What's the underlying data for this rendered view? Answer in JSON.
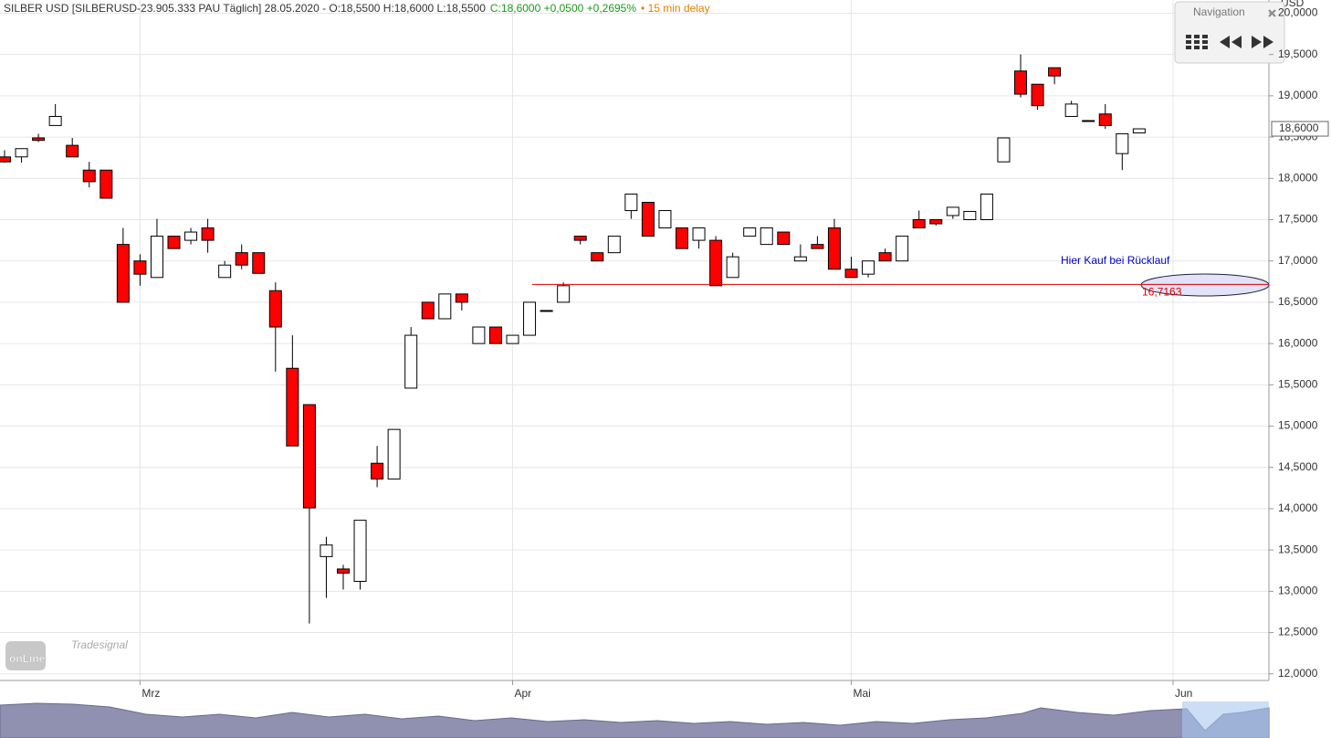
{
  "chart_data": {
    "type": "candlestick",
    "header": {
      "info": "SILBER USD [SILBERUSD-23.905.333 PAU Täglich] 28.05.2020 - O:18,5500 H:18,6000 L:18,5500",
      "change": "C:18,6000 +0,0500 +0,2695%",
      "delay": "• 15 min delay"
    },
    "y_axis_label": "USD",
    "up_color": "#ffffff",
    "down_color": "#ff0000",
    "categories": [
      null,
      null,
      null,
      null,
      null,
      null,
      null,
      null,
      "Mrz",
      null,
      null,
      null,
      null,
      null,
      null,
      null,
      null,
      null,
      null,
      null,
      null,
      null,
      null,
      null,
      null,
      null,
      null,
      null,
      null,
      null,
      "Apr",
      null,
      null,
      null,
      null,
      null,
      null,
      null,
      null,
      null,
      null,
      null,
      null,
      null,
      null,
      null,
      null,
      null,
      null,
      null,
      "Mai",
      null,
      null,
      null,
      null,
      null,
      null,
      null,
      null,
      null,
      null,
      null,
      null,
      null,
      null,
      null,
      null,
      null,
      null,
      "Jun",
      null,
      null,
      null,
      null,
      null
    ],
    "open": [
      18.26,
      18.26,
      18.49,
      18.64,
      18.4,
      18.1,
      18.1,
      17.2,
      17.0,
      16.8,
      17.3,
      17.25,
      17.4,
      16.8,
      17.1,
      17.1,
      16.64,
      15.7,
      15.26,
      13.42,
      13.27,
      13.12,
      14.55,
      14.36,
      15.46,
      16.5,
      16.3,
      16.6,
      16.0,
      16.2,
      16.0,
      16.1,
      16.4,
      16.5,
      17.3,
      17.1,
      17.1,
      17.61,
      17.71,
      17.4,
      17.4,
      17.25,
      17.25,
      16.8,
      17.3,
      17.2,
      17.35,
      17.0,
      17.2,
      17.4,
      16.9,
      16.84,
      17.1,
      17.0,
      17.5,
      17.5,
      17.55,
      17.5,
      17.5,
      18.2,
      19.3,
      19.14,
      19.34,
      18.75,
      18.7,
      18.78,
      18.3,
      18.55,
      null,
      null,
      null,
      null,
      null,
      null,
      null
    ],
    "high": [
      18.34,
      18.36,
      18.54,
      18.9,
      18.49,
      18.2,
      18.1,
      17.4,
      17.08,
      17.51,
      17.3,
      17.4,
      17.51,
      17.0,
      17.2,
      17.1,
      16.74,
      16.1,
      15.26,
      13.66,
      13.32,
      13.86,
      14.76,
      14.96,
      16.2,
      16.5,
      16.6,
      16.6,
      16.2,
      16.2,
      16.1,
      16.5,
      16.4,
      16.74,
      17.3,
      17.1,
      17.3,
      17.81,
      17.71,
      17.61,
      17.4,
      17.4,
      17.3,
      17.1,
      17.4,
      17.4,
      17.35,
      17.2,
      17.3,
      17.51,
      17.05,
      17.0,
      17.15,
      17.3,
      17.61,
      17.5,
      17.65,
      17.6,
      17.81,
      18.49,
      19.5,
      19.14,
      19.34,
      18.94,
      18.7,
      18.9,
      18.54,
      18.6,
      null,
      null,
      null,
      null,
      null,
      null,
      null
    ],
    "low": [
      18.19,
      18.19,
      18.44,
      18.64,
      18.26,
      17.89,
      17.76,
      16.5,
      16.7,
      16.8,
      17.15,
      17.2,
      17.1,
      16.8,
      16.9,
      16.85,
      15.66,
      14.76,
      12.61,
      12.92,
      13.02,
      13.02,
      14.26,
      14.36,
      15.46,
      16.3,
      16.3,
      16.4,
      16.0,
      16.0,
      16.0,
      16.1,
      16.4,
      16.5,
      17.2,
      17.0,
      17.1,
      17.51,
      17.3,
      17.4,
      17.15,
      17.15,
      16.7,
      16.8,
      17.3,
      17.2,
      17.2,
      17.0,
      17.15,
      16.9,
      16.8,
      16.8,
      17.0,
      17.0,
      17.4,
      17.43,
      17.51,
      17.5,
      17.5,
      18.2,
      18.98,
      18.83,
      19.14,
      18.75,
      18.7,
      18.6,
      18.1,
      18.55,
      null,
      null,
      null,
      null,
      null,
      null,
      null
    ],
    "close": [
      18.2,
      18.36,
      18.46,
      18.75,
      18.26,
      17.96,
      17.76,
      16.5,
      16.84,
      17.3,
      17.15,
      17.35,
      17.25,
      16.95,
      16.95,
      16.85,
      16.2,
      14.76,
      14.01,
      13.56,
      13.22,
      13.86,
      14.36,
      14.96,
      16.1,
      16.3,
      16.6,
      16.5,
      16.2,
      16.0,
      16.1,
      16.5,
      16.4,
      16.7,
      17.25,
      17.0,
      17.3,
      17.81,
      17.3,
      17.61,
      17.15,
      17.4,
      16.7,
      17.05,
      17.4,
      17.4,
      17.2,
      17.05,
      17.15,
      16.9,
      16.8,
      17.0,
      17.0,
      17.3,
      17.4,
      17.45,
      17.65,
      17.6,
      17.81,
      18.49,
      19.02,
      18.88,
      19.24,
      18.9,
      18.7,
      18.64,
      18.54,
      18.6,
      null,
      null,
      null,
      null,
      null,
      null,
      null
    ],
    "ylim": [
      11.92,
      20.16
    ],
    "yticks": [
      {
        "value": 12,
        "label": "12,0000"
      },
      {
        "value": 12.5,
        "label": "12,5000"
      },
      {
        "value": 13,
        "label": "13,0000"
      },
      {
        "value": 13.5,
        "label": "13,5000"
      },
      {
        "value": 14,
        "label": "14,0000"
      },
      {
        "value": 14.5,
        "label": "14,5000"
      },
      {
        "value": 15,
        "label": "15,0000"
      },
      {
        "value": 15.5,
        "label": "15,5000"
      },
      {
        "value": 16,
        "label": "16,0000"
      },
      {
        "value": 16.5,
        "label": "16,5000"
      },
      {
        "value": 17,
        "label": "17,0000"
      },
      {
        "value": 17.5,
        "label": "17,5000"
      },
      {
        "value": 18,
        "label": "18,0000"
      },
      {
        "value": 18.5,
        "label": "18,5000"
      },
      {
        "value": 19,
        "label": "19,0000"
      },
      {
        "value": 19.5,
        "label": "19,5000"
      },
      {
        "value": 20,
        "label": "20,0000"
      }
    ],
    "grid": true,
    "last_price": {
      "value": 18.6,
      "label": "18,6000"
    },
    "hline": {
      "value": 16.7163,
      "label": "16,7163",
      "color": "#e00000"
    },
    "annotation": "Hier Kauf bei Rücklauf",
    "watermark": {
      "brand": "Tradesignal",
      "logo": "onLine"
    },
    "navigation": {
      "title": "Navigation"
    }
  }
}
